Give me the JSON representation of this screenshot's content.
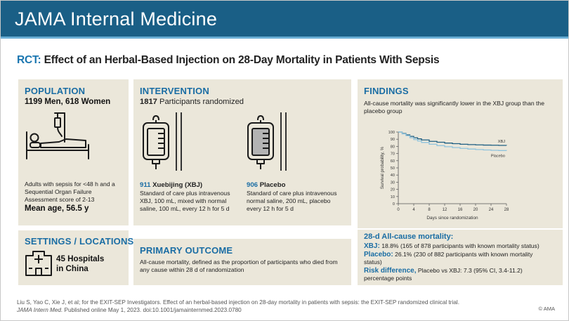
{
  "header": {
    "title": "JAMA Internal Medicine"
  },
  "rct": {
    "label": "RCT:",
    "title": "Effect of an Herbal-Based Injection on 28-Day Mortality in Patients With Sepsis"
  },
  "population": {
    "heading": "POPULATION",
    "men": "1199 Men, 618 Women",
    "description": "Adults with sepsis for <48 h and a Sequential Organ Failure Assessment score of 2-13",
    "mean_age": "Mean age, 56.5 y"
  },
  "settings": {
    "heading": "SETTINGS / LOCATIONS",
    "text_line1": "45 Hospitals",
    "text_line2": "in China"
  },
  "intervention": {
    "heading": "INTERVENTION",
    "count": "1817",
    "count_label": "Participants randomized",
    "xbj": {
      "n": "911",
      "name": "Xuebijing (XBJ)",
      "desc": "Standard of care plus intravenous XBJ, 100 mL, mixed with normal saline, 100 mL, every 12 h for 5 d"
    },
    "placebo": {
      "n": "906",
      "name": "Placebo",
      "desc": "Standard of care plus intravenous normal saline, 200 mL, placebo every 12 h for 5 d"
    }
  },
  "primary_outcome": {
    "heading": "PRIMARY OUTCOME",
    "text": "All-cause mortality, defined as the proportion of participants who died from any cause within 28 d of randomization"
  },
  "findings": {
    "heading": "FINDINGS",
    "text": "All-cause mortality was significantly lower in the XBJ group than the placebo group",
    "mortality_heading": "28-d All-cause mortality:",
    "xbj_label": "XBJ:",
    "xbj_text": "18.8% (165 of 878 participants with known mortality status)",
    "placebo_label": "Placebo:",
    "placebo_text": "26.1% (230 of 882 participants with known mortality status)",
    "risk_label": "Risk difference,",
    "risk_text": "Placebo vs XBJ: 7.3 (95% CI, 3.4-11.2) percentage points"
  },
  "chart_data": {
    "type": "line",
    "title": "",
    "xlabel": "Days since randomization",
    "ylabel": "Survival probability, %",
    "xlim": [
      0,
      28
    ],
    "ylim": [
      0,
      100
    ],
    "xticks": [
      "0",
      "4",
      "8",
      "12",
      "16",
      "20",
      "24",
      "28"
    ],
    "yticks": [
      "0",
      "10",
      "20",
      "30",
      "40",
      "50",
      "60",
      "70",
      "80",
      "90",
      "100"
    ],
    "series": [
      {
        "name": "XBJ",
        "color": "#1f5f82",
        "x": [
          0,
          1,
          2,
          3,
          4,
          5,
          6,
          8,
          10,
          12,
          14,
          16,
          18,
          20,
          22,
          24,
          26,
          28
        ],
        "y": [
          100,
          98,
          96,
          94,
          92,
          90.5,
          89,
          87,
          85.8,
          84.6,
          83.8,
          83,
          82.5,
          82.1,
          81.8,
          81.6,
          81.4,
          81.2
        ]
      },
      {
        "name": "Placebo",
        "color": "#8fc3dd",
        "x": [
          0,
          1,
          2,
          3,
          4,
          5,
          6,
          8,
          10,
          12,
          14,
          16,
          18,
          20,
          22,
          24,
          26,
          28
        ],
        "y": [
          100,
          97.5,
          95,
          92,
          89.5,
          87.5,
          85.5,
          83,
          81,
          79.5,
          78.3,
          77.2,
          76.3,
          75.6,
          75,
          74.5,
          74.2,
          73.9
        ]
      }
    ]
  },
  "footer": {
    "line1": "Liu S, Yao C, Xie J, et al; for the EXIT-SEP Investigators. Effect of an herbal-based injection on 28-day mortality in patients with sepsis: the EXIT-SEP randomized clinical trial.",
    "journal": "JAMA Intern Med.",
    "line2": "Published online May 1, 2023. doi:10.1001/jamainternmed.2023.0780",
    "copyright": "© AMA"
  },
  "colors": {
    "header": "#1a5f86",
    "accent": "#1a6da4",
    "panel": "#ebe7da"
  }
}
